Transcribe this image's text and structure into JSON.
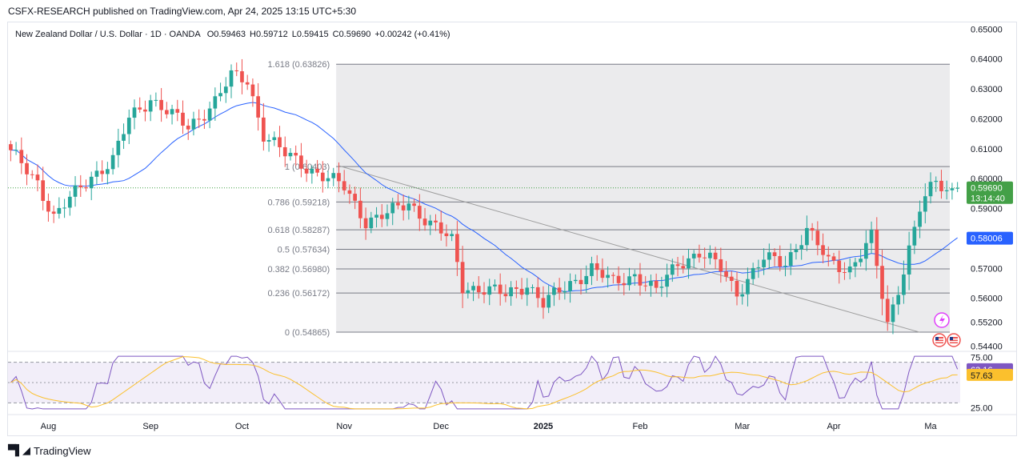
{
  "header": {
    "publisher": "CSFX-RESEARCH published on TradingView.com, Apr 24, 2025 13:15 UTC+5:30"
  },
  "footer": {
    "brand": "TradingView"
  },
  "colors": {
    "up": "#26a69a",
    "down": "#ef5350",
    "ma": "#2962ff",
    "rsi_line": "#7e57c2",
    "rsi_ma": "#fbc02d",
    "price_badge": "#43a047",
    "ma_badge": "#2962ff",
    "rsi_badge": "#7e57c2",
    "rsi_ma_badge": "#fbc02d"
  },
  "chart_data": {
    "type": "candlestick",
    "title": "New Zealand Dollar / U.S. Dollar · 1D · OANDA",
    "ohlc_summary": {
      "o": "O0.59463",
      "h": "H0.59712",
      "l": "L0.59415",
      "c": "C0.59690",
      "change": "+0.00242 (+0.41%)"
    },
    "price_axis": {
      "ylim": [
        0.5425,
        0.6525
      ],
      "ticks": [
        "0.65000",
        "0.64000",
        "0.63000",
        "0.62000",
        "0.61000",
        "0.60000",
        "0.59000",
        "0.58000",
        "0.57000",
        "0.56000",
        "0.55200",
        "0.54400"
      ],
      "tick_values": [
        0.65,
        0.64,
        0.63,
        0.62,
        0.61,
        0.6,
        0.59,
        0.58,
        0.57,
        0.56,
        0.552,
        0.544
      ]
    },
    "time_axis": {
      "labels": [
        "Aug",
        "Sep",
        "Oct",
        "Nov",
        "Dec",
        "2025",
        "Feb",
        "Mar",
        "Apr",
        "Ma"
      ],
      "bold": [
        false,
        false,
        false,
        false,
        false,
        true,
        false,
        false,
        false,
        false
      ],
      "bar_index": [
        7,
        26,
        43,
        62,
        80,
        99,
        117,
        136,
        153,
        171
      ]
    },
    "last_price": {
      "value": 0.5969,
      "label": "0.59690",
      "countdown": "13:14:40"
    },
    "ma_value": {
      "value": 0.58006,
      "label": "0.58006"
    },
    "fibonacci": {
      "start_bar": 61,
      "levels": [
        {
          "label": "1.618 (0.63826)",
          "value": 0.63826
        },
        {
          "label": "1 (0.60403)",
          "value": 0.60403
        },
        {
          "label": "0.786 (0.59218)",
          "value": 0.59218
        },
        {
          "label": "0.618 (0.58287)",
          "value": 0.58287
        },
        {
          "label": "0.5 (0.57634)",
          "value": 0.57634
        },
        {
          "label": "0.382 (0.56980)",
          "value": 0.5698
        },
        {
          "label": "0.236 (0.56172)",
          "value": 0.56172
        },
        {
          "label": "0 (0.54865)",
          "value": 0.54865
        }
      ]
    },
    "trendline": {
      "from": {
        "bar": 61,
        "price": 0.6043
      },
      "to": {
        "bar": 169,
        "price": 0.5486
      }
    },
    "anchors": [
      [
        0,
        0.6085
      ],
      [
        5,
        0.599
      ],
      [
        8,
        0.587
      ],
      [
        12,
        0.595
      ],
      [
        15,
        0.601
      ],
      [
        19,
        0.606
      ],
      [
        22,
        0.62
      ],
      [
        26,
        0.627
      ],
      [
        30,
        0.621
      ],
      [
        33,
        0.617
      ],
      [
        38,
        0.626
      ],
      [
        41,
        0.634
      ],
      [
        44,
        0.633
      ],
      [
        47,
        0.615
      ],
      [
        51,
        0.608
      ],
      [
        55,
        0.604
      ],
      [
        59,
        0.6
      ],
      [
        62,
        0.597
      ],
      [
        66,
        0.586
      ],
      [
        70,
        0.588
      ],
      [
        74,
        0.592
      ],
      [
        78,
        0.585
      ],
      [
        82,
        0.579
      ],
      [
        84,
        0.564
      ],
      [
        88,
        0.563
      ],
      [
        92,
        0.561
      ],
      [
        96,
        0.565
      ],
      [
        99,
        0.558
      ],
      [
        104,
        0.565
      ],
      [
        108,
        0.57
      ],
      [
        112,
        0.565
      ],
      [
        116,
        0.568
      ],
      [
        120,
        0.562
      ],
      [
        124,
        0.572
      ],
      [
        128,
        0.575
      ],
      [
        132,
        0.57
      ],
      [
        135,
        0.562
      ],
      [
        140,
        0.573
      ],
      [
        144,
        0.572
      ],
      [
        148,
        0.583
      ],
      [
        152,
        0.572
      ],
      [
        156,
        0.57
      ],
      [
        160,
        0.58
      ],
      [
        163,
        0.551
      ],
      [
        166,
        0.57
      ],
      [
        169,
        0.59
      ],
      [
        172,
        0.599
      ],
      [
        174,
        0.596
      ],
      [
        176,
        0.5969
      ]
    ],
    "rsi": {
      "ylim": [
        20,
        80
      ],
      "ticks": [
        "75.00",
        "25.00"
      ],
      "tick_values": [
        75,
        25
      ],
      "level_lines": [
        70,
        50,
        30
      ],
      "value": {
        "value": 63.16,
        "label": "63.16"
      },
      "ma_value": {
        "value": 57.63,
        "label": "57.63"
      }
    }
  }
}
